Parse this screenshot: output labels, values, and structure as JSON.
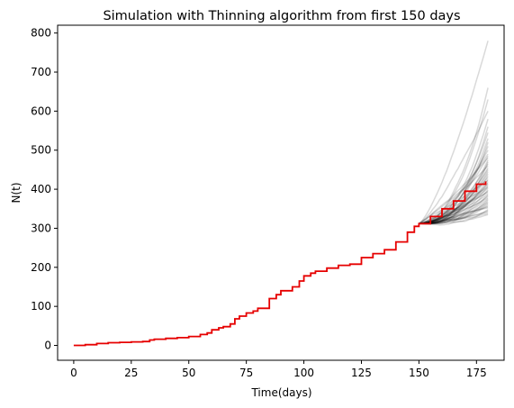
{
  "chart_data": {
    "type": "line",
    "title": "Simulation with Thinning algorithm from first 150 days",
    "xlabel": "Time(days)",
    "ylabel": "N(t)",
    "xlim": [
      -7,
      187
    ],
    "ylim": [
      -38,
      820
    ],
    "xticks": [
      0,
      25,
      50,
      75,
      100,
      125,
      150,
      175
    ],
    "yticks": [
      0,
      100,
      200,
      300,
      400,
      500,
      600,
      700,
      800
    ],
    "grid": false,
    "legend": "none",
    "colors": {
      "observed": "#e60000",
      "simulation": "#000000",
      "simulation_alpha": 0.15
    },
    "observed_series": {
      "x": [
        0,
        5,
        10,
        15,
        20,
        25,
        30,
        33,
        35,
        40,
        45,
        50,
        55,
        58,
        60,
        63,
        65,
        68,
        70,
        72,
        75,
        78,
        80,
        85,
        88,
        90,
        95,
        98,
        100,
        103,
        105,
        110,
        115,
        120,
        125,
        130,
        135,
        140,
        145,
        148,
        150,
        155,
        160,
        165,
        170,
        175,
        179
      ],
      "y": [
        0,
        2,
        5,
        7,
        8,
        9,
        10,
        14,
        16,
        18,
        20,
        23,
        28,
        32,
        40,
        45,
        48,
        55,
        68,
        75,
        83,
        88,
        95,
        120,
        130,
        140,
        150,
        165,
        178,
        185,
        190,
        198,
        205,
        208,
        225,
        235,
        245,
        265,
        290,
        305,
        312,
        330,
        350,
        370,
        395,
        413,
        420
      ]
    },
    "simulation_branch": {
      "start": [
        150,
        312
      ],
      "end_x": 180,
      "end_values": [
        335,
        338,
        342,
        345,
        348,
        352,
        355,
        358,
        362,
        365,
        368,
        372,
        375,
        378,
        382,
        385,
        388,
        392,
        395,
        398,
        402,
        405,
        408,
        412,
        415,
        418,
        422,
        425,
        430,
        435,
        440,
        445,
        450,
        455,
        460,
        465,
        470,
        475,
        480,
        485,
        490,
        500,
        510,
        520,
        530,
        545,
        560,
        580,
        600,
        630,
        660,
        780
      ]
    }
  }
}
